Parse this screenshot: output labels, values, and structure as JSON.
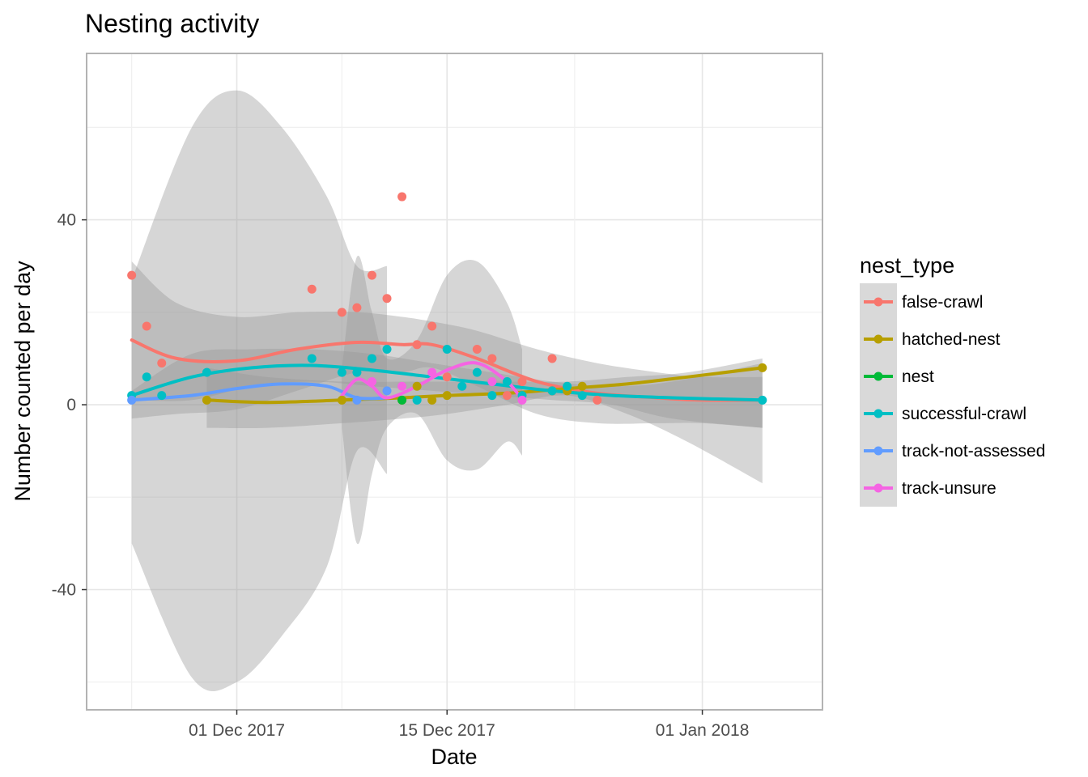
{
  "chart_data": {
    "type": "scatter",
    "title": "Nesting activity",
    "xlabel": "Date",
    "ylabel": "Number counted per day",
    "x_axis": "date",
    "xlim": [
      "2017-11-21",
      "2018-01-09"
    ],
    "ylim": [
      -66,
      76
    ],
    "x_ticks": [
      {
        "date": "2017-12-01",
        "label": "01 Dec 2017"
      },
      {
        "date": "2017-12-15",
        "label": "15 Dec 2017"
      },
      {
        "date": "2018-01-01",
        "label": "01 Jan 2018"
      }
    ],
    "y_ticks": [
      {
        "value": 40,
        "label": "40"
      },
      {
        "value": 0,
        "label": "0"
      },
      {
        "value": -40,
        "label": "-40"
      }
    ],
    "grid": true,
    "legend": {
      "title": "nest_type",
      "position": "right",
      "entries": [
        "false-crawl",
        "hatched-nest",
        "nest",
        "successful-crawl",
        "track-not-assessed",
        "track-unsure"
      ]
    },
    "series": [
      {
        "name": "false-crawl",
        "color": "#F8766D",
        "points": [
          [
            "2017-11-24",
            28
          ],
          [
            "2017-11-25",
            17
          ],
          [
            "2017-11-26",
            9
          ],
          [
            "2017-12-06",
            25
          ],
          [
            "2017-12-08",
            20
          ],
          [
            "2017-12-09",
            21
          ],
          [
            "2017-12-10",
            28
          ],
          [
            "2017-12-11",
            23
          ],
          [
            "2017-12-12",
            45
          ],
          [
            "2017-12-13",
            13
          ],
          [
            "2017-12-14",
            17
          ],
          [
            "2017-12-15",
            6
          ],
          [
            "2017-12-17",
            12
          ],
          [
            "2017-12-18",
            10
          ],
          [
            "2017-12-19",
            2
          ],
          [
            "2017-12-20",
            5
          ],
          [
            "2017-12-22",
            10
          ],
          [
            "2017-12-23",
            3
          ],
          [
            "2017-12-25",
            1
          ]
        ],
        "smooth": [
          [
            "2017-11-24",
            14
          ],
          [
            "2017-11-27",
            10
          ],
          [
            "2017-12-01",
            9.5
          ],
          [
            "2017-12-05",
            12
          ],
          [
            "2017-12-09",
            13.5
          ],
          [
            "2017-12-12",
            13
          ],
          [
            "2017-12-14",
            13
          ],
          [
            "2017-12-17",
            10
          ],
          [
            "2017-12-21",
            5
          ],
          [
            "2017-12-25",
            2.5
          ],
          [
            "2017-12-29",
            1.5
          ],
          [
            "2018-01-01",
            1
          ],
          [
            "2018-01-05",
            1
          ]
        ],
        "band": [
          [
            31,
            -3
          ],
          [
            22,
            -2
          ],
          [
            19,
            -1
          ],
          [
            20,
            3
          ],
          [
            20,
            7
          ],
          [
            19,
            7
          ],
          [
            18,
            8
          ],
          [
            16,
            4
          ],
          [
            12,
            -2
          ],
          [
            9,
            -4
          ],
          [
            7,
            -4
          ],
          [
            6,
            -4
          ],
          [
            6,
            -5
          ]
        ]
      },
      {
        "name": "hatched-nest",
        "color": "#B79F00",
        "points": [
          [
            "2017-11-29",
            1
          ],
          [
            "2017-12-08",
            1
          ],
          [
            "2017-12-12",
            1
          ],
          [
            "2017-12-13",
            4
          ],
          [
            "2017-12-14",
            1
          ],
          [
            "2017-12-15",
            2
          ],
          [
            "2017-12-22",
            3
          ],
          [
            "2017-12-23",
            3
          ],
          [
            "2017-12-24",
            4
          ],
          [
            "2018-01-05",
            8
          ]
        ],
        "smooth": [
          [
            "2017-11-29",
            1
          ],
          [
            "2017-12-03",
            0.5
          ],
          [
            "2017-12-08",
            1
          ],
          [
            "2017-12-12",
            1.5
          ],
          [
            "2017-12-15",
            2
          ],
          [
            "2017-12-19",
            2.5
          ],
          [
            "2017-12-23",
            3.5
          ],
          [
            "2017-12-27",
            4.5
          ],
          [
            "2017-12-31",
            6
          ],
          [
            "2018-01-05",
            8
          ]
        ],
        "band": [
          [
            8,
            -5
          ],
          [
            6,
            -5
          ],
          [
            5,
            -4
          ],
          [
            5,
            -3
          ],
          [
            5,
            -2
          ],
          [
            5,
            0
          ],
          [
            5,
            2
          ],
          [
            6,
            -2
          ],
          [
            7,
            -8
          ],
          [
            10,
            -17
          ]
        ]
      },
      {
        "name": "nest",
        "color": "#00BA38",
        "points": [
          [
            "2017-12-12",
            1
          ]
        ],
        "smooth": [],
        "band": []
      },
      {
        "name": "successful-crawl",
        "color": "#00BFC4",
        "points": [
          [
            "2017-11-24",
            2
          ],
          [
            "2017-11-25",
            6
          ],
          [
            "2017-11-26",
            2
          ],
          [
            "2017-11-29",
            7
          ],
          [
            "2017-12-06",
            10
          ],
          [
            "2017-12-08",
            7
          ],
          [
            "2017-12-09",
            7
          ],
          [
            "2017-12-10",
            10
          ],
          [
            "2017-12-11",
            12
          ],
          [
            "2017-12-13",
            1
          ],
          [
            "2017-12-15",
            12
          ],
          [
            "2017-12-16",
            4
          ],
          [
            "2017-12-17",
            7
          ],
          [
            "2017-12-18",
            2
          ],
          [
            "2017-12-19",
            5
          ],
          [
            "2017-12-20",
            2
          ],
          [
            "2017-12-22",
            3
          ],
          [
            "2017-12-23",
            4
          ],
          [
            "2017-12-24",
            2
          ],
          [
            "2018-01-05",
            1
          ]
        ],
        "smooth": [
          [
            "2017-11-24",
            2
          ],
          [
            "2017-11-28",
            6
          ],
          [
            "2017-12-02",
            8
          ],
          [
            "2017-12-06",
            8.5
          ],
          [
            "2017-12-10",
            7.5
          ],
          [
            "2017-12-14",
            6
          ],
          [
            "2017-12-18",
            4.5
          ],
          [
            "2017-12-22",
            3
          ],
          [
            "2017-12-26",
            2
          ],
          [
            "2017-12-30",
            1.5
          ],
          [
            "2018-01-05",
            1
          ]
        ],
        "band": [
          [
            3,
            1
          ],
          [
            11,
            1
          ],
          [
            12,
            4
          ],
          [
            12,
            5
          ],
          [
            11,
            4
          ],
          [
            9,
            3
          ],
          [
            7,
            2
          ],
          [
            5,
            1
          ],
          [
            4,
            0
          ],
          [
            5,
            -3
          ],
          [
            9,
            -5
          ]
        ]
      },
      {
        "name": "track-not-assessed",
        "color": "#619CFF",
        "points": [
          [
            "2017-11-24",
            1
          ],
          [
            "2017-12-09",
            1
          ],
          [
            "2017-12-11",
            3
          ]
        ],
        "smooth": [
          [
            "2017-11-24",
            1
          ],
          [
            "2017-11-28",
            2
          ],
          [
            "2017-12-01",
            3.5
          ],
          [
            "2017-12-04",
            4.5
          ],
          [
            "2017-12-07",
            4
          ],
          [
            "2017-12-09",
            1.5
          ],
          [
            "2017-12-11",
            1.5
          ]
        ],
        "band": [
          [
            27,
            -30
          ],
          [
            60,
            -59
          ],
          [
            68,
            -60
          ],
          [
            60,
            -50
          ],
          [
            45,
            -35
          ],
          [
            30,
            -10
          ],
          [
            30,
            -15
          ]
        ]
      },
      {
        "name": "track-unsure",
        "color": "#F564E3",
        "points": [
          [
            "2017-12-10",
            5
          ],
          [
            "2017-12-12",
            4
          ],
          [
            "2017-12-14",
            7
          ],
          [
            "2017-12-18",
            5
          ],
          [
            "2017-12-20",
            1
          ]
        ],
        "smooth": [
          [
            "2017-12-08",
            2
          ],
          [
            "2017-12-09",
            5.5
          ],
          [
            "2017-12-10",
            4
          ],
          [
            "2017-12-11",
            1.5
          ],
          [
            "2017-12-13",
            4
          ],
          [
            "2017-12-15",
            7.5
          ],
          [
            "2017-12-17",
            9
          ],
          [
            "2017-12-19",
            5
          ],
          [
            "2017-12-20",
            1
          ]
        ],
        "band": [
          [
            8,
            -5
          ],
          [
            32,
            -30
          ],
          [
            20,
            -15
          ],
          [
            10,
            -5
          ],
          [
            14,
            -2
          ],
          [
            28,
            -12
          ],
          [
            31,
            -14
          ],
          [
            22,
            -8
          ],
          [
            12,
            -11
          ]
        ]
      }
    ]
  }
}
